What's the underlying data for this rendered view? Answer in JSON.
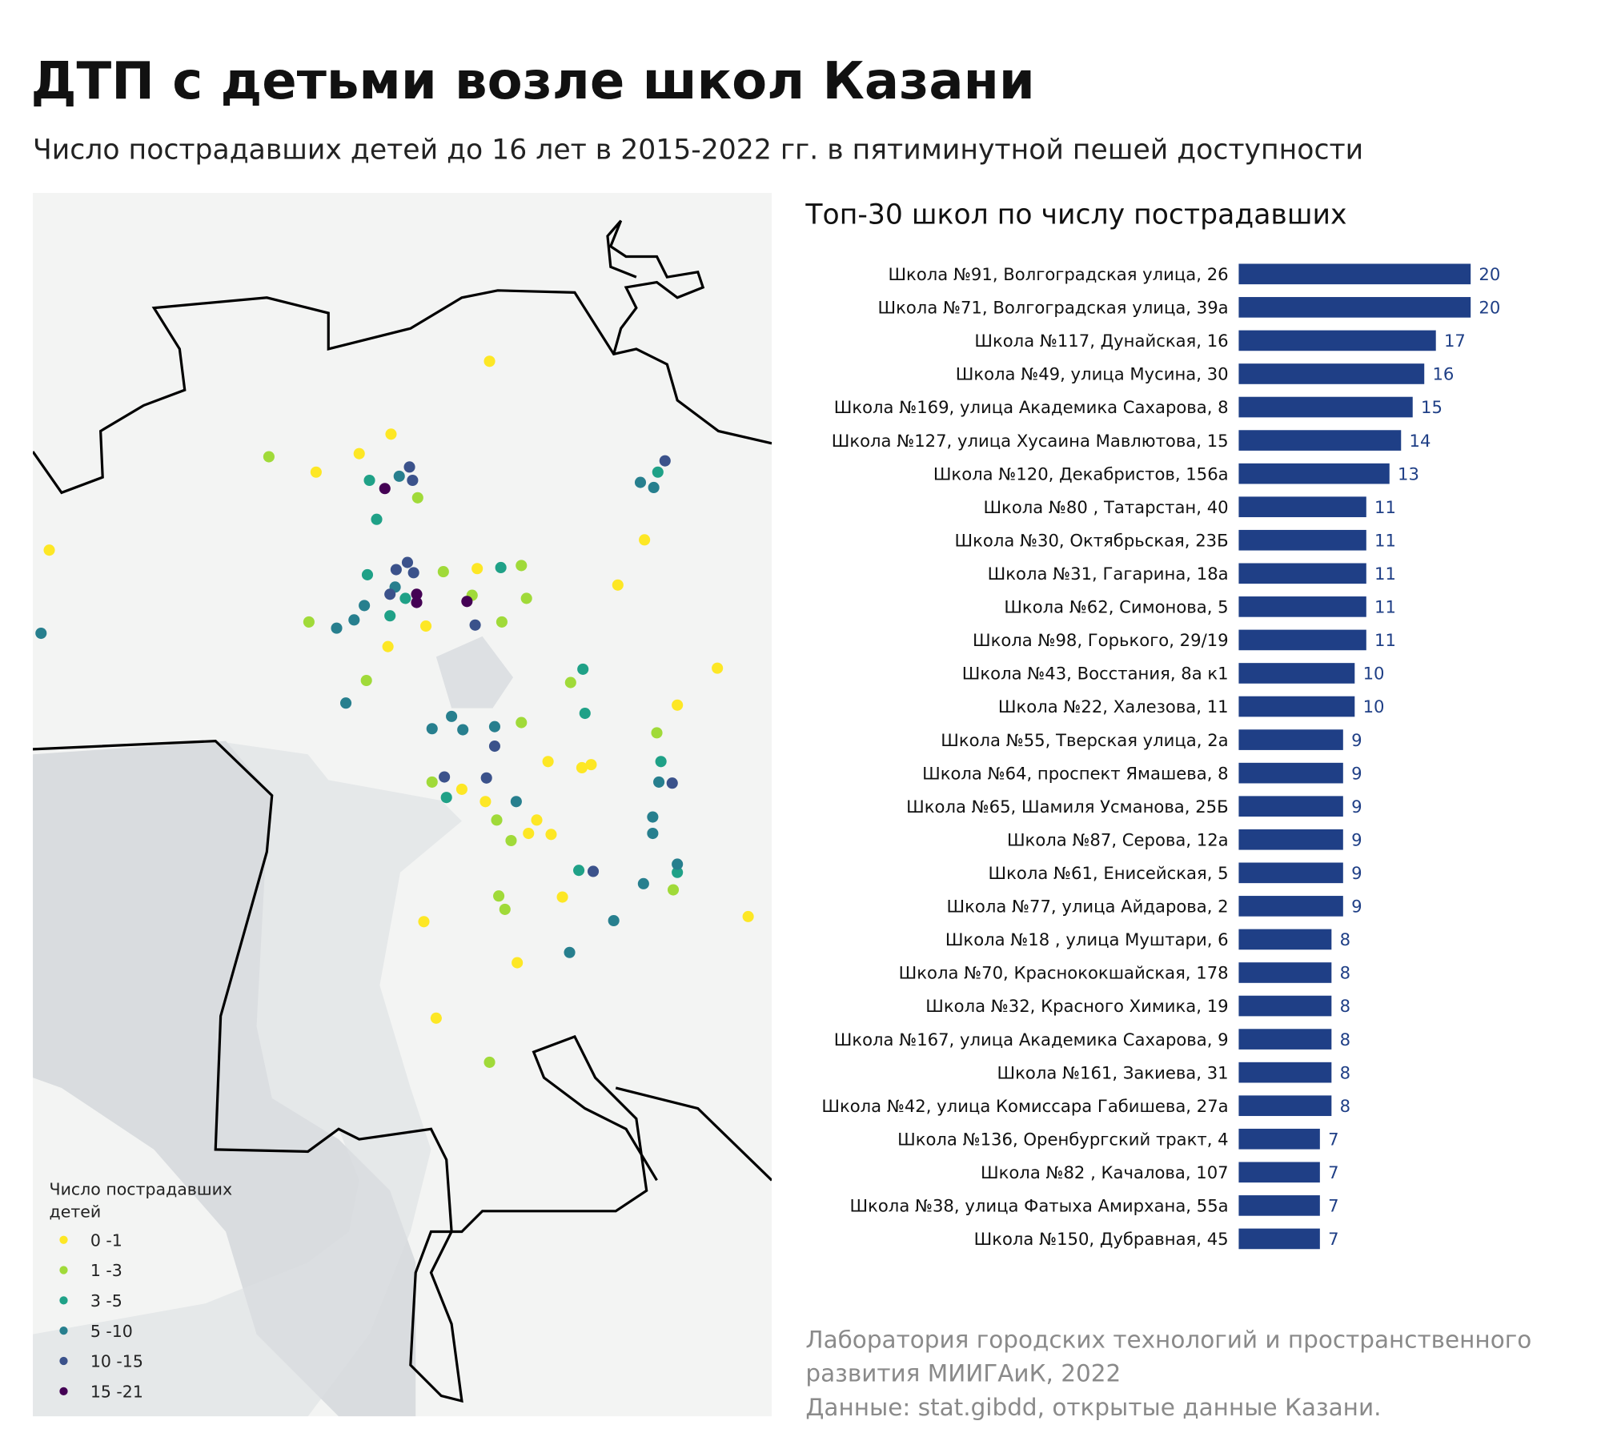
{
  "header": {
    "title": "ДТП с детьми возле школ Казани",
    "subtitle": "Число пострадавших детей до 16 лет в 2015-2022 гг. в пятиминутной пешей доступности"
  },
  "map": {
    "legend_title": [
      "Число пострадавших",
      "детей"
    ],
    "legend": [
      {
        "label": "0 -1",
        "color": "#fde725"
      },
      {
        "label": "1 -3",
        "color": "#a0da39"
      },
      {
        "label": "3 -5",
        "color": "#1fa187"
      },
      {
        "label": "5 -10",
        "color": "#277f8e"
      },
      {
        "label": "10 -15",
        "color": "#3b528b"
      },
      {
        "label": "15 -21",
        "color": "#440154"
      }
    ]
  },
  "chart_data": {
    "type": "bar",
    "orientation": "horizontal",
    "title": "Топ-30 школ по числу пострадавших",
    "color": "#1f3f86",
    "categories": [
      "Школа №91, Волгоградская улица, 26",
      "Школа №71, Волгоградская улица, 39а",
      "Школа №117, Дунайская, 16",
      "Школа №49, улица Мусина, 30",
      "Школа №169, улица Академика Сахарова, 8",
      "Школа №127, улица Хусаина Мавлютова, 15",
      "Школа №120, Декабристов, 156а",
      "Школа №80 , Татарстан, 40",
      "Школа №30, Октябрьская, 23Б",
      "Школа №31, Гагарина, 18а",
      "Школа №62, Симонова, 5",
      "Школа №98, Горького, 29/19",
      "Школа №43, Восстания, 8а к1",
      "Школа №22, Халезова, 11",
      "Школа №55, Тверская улица, 2а",
      "Школа №64, проспект Ямашева, 8",
      "Школа №65, Шамиля Усманова, 25Б",
      "Школа №87, Серова, 12а",
      "Школа №61, Енисейская, 5",
      "Школа №77, улица Айдарова, 2",
      "Школа №18 , улица Муштари, 6",
      "Школа №70, Краснококшайская, 178",
      "Школа №32, Красного Химика, 19",
      "Школа №167, улица Академика Сахарова, 9",
      "Школа №161, Закиева, 31",
      "Школа №42, улица Комиссара Габишева, 27а",
      "Школа №136, Оренбургский тракт, 4",
      "Школа №82 , Качалова, 107",
      "Школа №38, улица Фатыха Амирхана, 55а",
      "Школа №150, Дубравная, 45"
    ],
    "values": [
      20,
      20,
      17,
      16,
      15,
      14,
      13,
      11,
      11,
      11,
      11,
      11,
      10,
      10,
      9,
      9,
      9,
      9,
      9,
      9,
      8,
      8,
      8,
      8,
      8,
      8,
      7,
      7,
      7,
      7
    ]
  },
  "source": [
    "Лаборатория городских технологий и пространственного",
    "развития МИИГАиК, 2022",
    "Данные: stat.gibdd, открытые данные Казани."
  ]
}
